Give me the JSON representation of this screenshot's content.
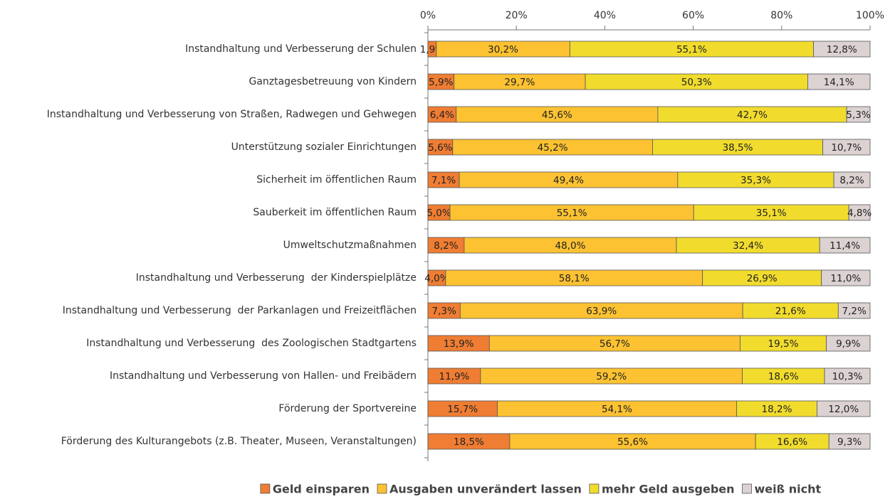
{
  "chart_data": {
    "type": "stacked-bar-horizontal",
    "categories": [
      "Instandhaltung und Verbesserung der Schulen",
      "Ganztagesbetreuung von Kindern",
      "Instandhaltung und Verbesserung von Straßen, Radwegen und Gehwegen",
      "Unterstützung sozialer Einrichtungen",
      "Sicherheit im öffentlichen Raum",
      "Sauberkeit im öffentlichen Raum",
      "Umweltschutzmaßnahmen",
      "Instandhaltung und Verbesserung  der Kinderspielplätze",
      "Instandhaltung und Verbesserung  der Parkanlagen und Freizeitflächen",
      "Instandhaltung und Verbesserung  des Zoologischen Stadtgartens",
      "Instandhaltung und Verbesserung von Hallen- und Freibädern",
      "Förderung der Sportvereine",
      "Förderung des Kulturangebots (z.B. Theater, Museen, Veranstaltungen)"
    ],
    "series": [
      {
        "name": "Geld einsparen",
        "color": "#ef7d33",
        "values": [
          1.9,
          5.9,
          6.4,
          5.6,
          7.1,
          5.0,
          8.2,
          4.0,
          7.3,
          13.9,
          11.9,
          15.7,
          18.5
        ],
        "value_labels": [
          "1,9%",
          "5,9%",
          "6,4%",
          "5,6%",
          "7,1%",
          "5,0%",
          "8,2%",
          "4,0%",
          "7,3%",
          "13,9%",
          "11,9%",
          "15,7%",
          "18,5%"
        ]
      },
      {
        "name": "Ausgaben unverändert lassen",
        "color": "#fcc232",
        "values": [
          30.2,
          29.7,
          45.6,
          45.2,
          49.4,
          55.1,
          48.0,
          58.1,
          63.9,
          56.7,
          59.2,
          54.1,
          55.6
        ],
        "value_labels": [
          "30,2%",
          "29,7%",
          "45,6%",
          "45,2%",
          "49,4%",
          "55,1%",
          "48,0%",
          "58,1%",
          "63,9%",
          "56,7%",
          "59,2%",
          "54,1%",
          "55,6%"
        ]
      },
      {
        "name": "mehr Geld ausgeben",
        "color": "#f1dc2e",
        "values": [
          55.1,
          50.3,
          42.7,
          38.5,
          35.3,
          35.1,
          32.4,
          26.9,
          21.6,
          19.5,
          18.6,
          18.2,
          16.6
        ],
        "value_labels": [
          "55,1%",
          "50,3%",
          "42,7%",
          "38,5%",
          "35,3%",
          "35,1%",
          "32,4%",
          "26,9%",
          "21,6%",
          "19,5%",
          "18,6%",
          "18,2%",
          "16,6%"
        ]
      },
      {
        "name": "weiß nicht",
        "color": "#dcd2d2",
        "values": [
          12.8,
          14.1,
          5.3,
          10.7,
          8.2,
          4.8,
          11.4,
          11.0,
          7.2,
          9.9,
          10.3,
          12.0,
          9.3
        ],
        "value_labels": [
          "12,8%",
          "14,1%",
          "5,3%",
          "10,7%",
          "8,2%",
          "4,8%",
          "11,4%",
          "11,0%",
          "7,2%",
          "9,9%",
          "10,3%",
          "12,0%",
          "9,3%"
        ]
      }
    ],
    "xlim": [
      0,
      100
    ],
    "xticks": [
      {
        "value": 0,
        "label": "0%"
      },
      {
        "value": 20,
        "label": "20%"
      },
      {
        "value": 40,
        "label": "40%"
      },
      {
        "value": 60,
        "label": "60%"
      },
      {
        "value": 80,
        "label": "80%"
      },
      {
        "value": 100,
        "label": "100%"
      }
    ],
    "legend": "bottom"
  }
}
